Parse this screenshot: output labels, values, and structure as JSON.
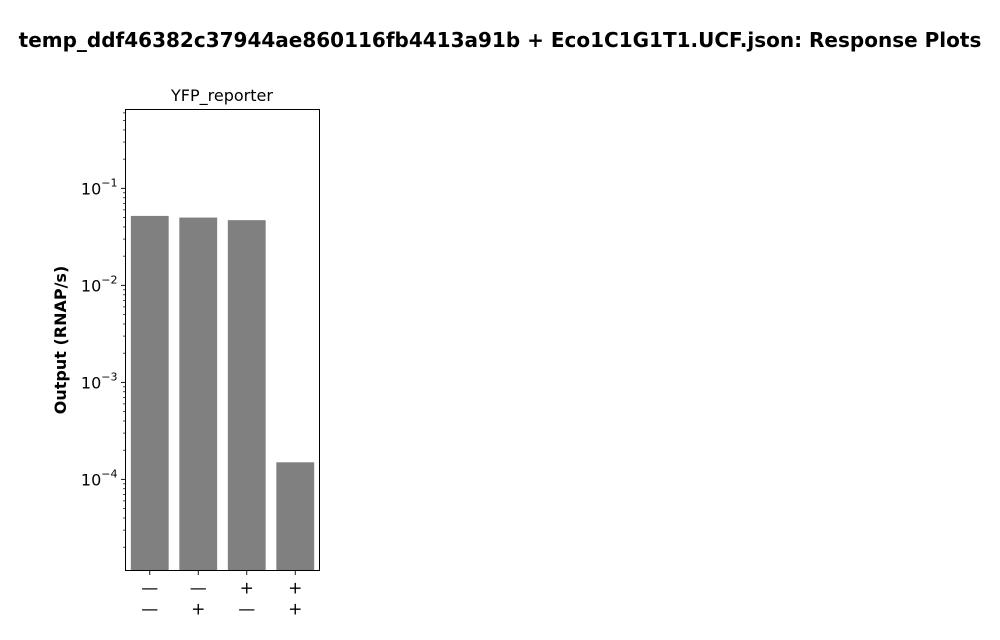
{
  "figure": {
    "title": "temp_ddf46382c37944ae860116fb4413a91b + Eco1C1G1T1.UCF.json: Response Plots"
  },
  "chart_data": {
    "type": "bar",
    "title": "YFP_reporter",
    "ylabel": "Output (RNAP/s)",
    "xlabel": "",
    "yscale": "log",
    "ylim": [
      1.15e-05,
      0.65
    ],
    "ytick_labels": [
      {
        "value": 0.1,
        "base": "10",
        "exp": "−1"
      },
      {
        "value": 0.01,
        "base": "10",
        "exp": "−2"
      },
      {
        "value": 0.001,
        "base": "10",
        "exp": "−3"
      },
      {
        "value": 0.0001,
        "base": "10",
        "exp": "−4"
      }
    ],
    "categories": [
      {
        "row1": "—",
        "row2": "—"
      },
      {
        "row1": "—",
        "row2": "+"
      },
      {
        "row1": "+",
        "row2": "—"
      },
      {
        "row1": "+",
        "row2": "+"
      }
    ],
    "values": [
      0.052,
      0.05,
      0.047,
      0.00015
    ],
    "bar_color": "#808080",
    "grid": false,
    "legend": "none"
  }
}
